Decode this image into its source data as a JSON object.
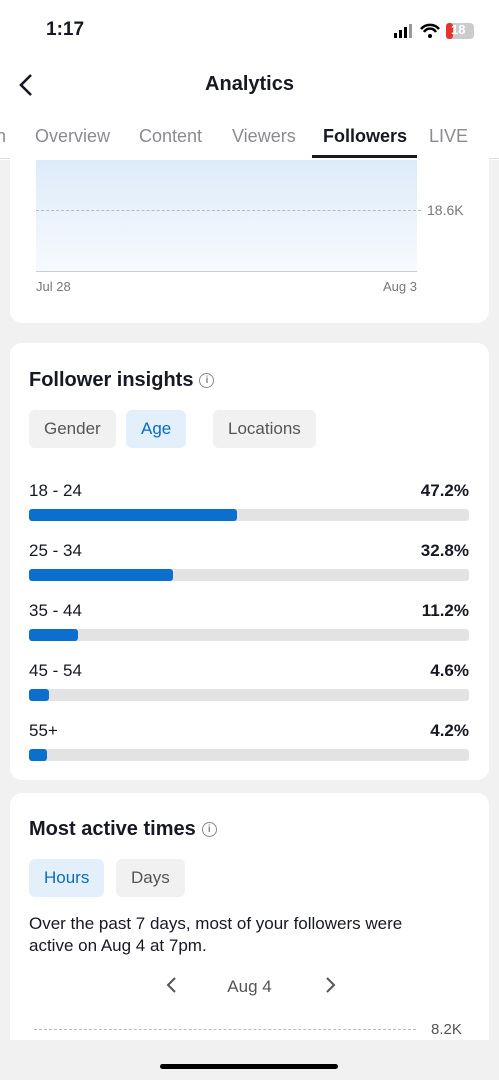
{
  "status_bar": {
    "time": "1:17",
    "battery": "18"
  },
  "header": {
    "title": "Analytics"
  },
  "tabs": [
    {
      "label": "n"
    },
    {
      "label": "Overview"
    },
    {
      "label": "Content"
    },
    {
      "label": "Viewers"
    },
    {
      "label": "Followers",
      "selected": true
    },
    {
      "label": "LIVE"
    }
  ],
  "follower_chart": {
    "y_label": "18.6K",
    "x_labels": [
      "Jul 28",
      "Aug 3"
    ]
  },
  "follower_insights": {
    "title": "Follower insights",
    "filters": [
      {
        "label": "Gender"
      },
      {
        "label": "Age",
        "selected": true
      },
      {
        "label": "Locations"
      }
    ],
    "xlim": [
      0,
      100
    ],
    "rows": [
      {
        "label": "18 - 24",
        "value": 47.2,
        "value_label": "47.2%"
      },
      {
        "label": "25 - 34",
        "value": 32.8,
        "value_label": "32.8%"
      },
      {
        "label": "35 - 44",
        "value": 11.2,
        "value_label": "11.2%"
      },
      {
        "label": "45 - 54",
        "value": 4.6,
        "value_label": "4.6%"
      },
      {
        "label": "55+",
        "value": 4.2,
        "value_label": "4.2%"
      }
    ]
  },
  "most_active": {
    "title": "Most active times",
    "filters": [
      {
        "label": "Hours",
        "selected": true
      },
      {
        "label": "Days"
      }
    ],
    "summary": "Over the past 7 days, most of your followers were active on Aug 4 at 7pm.",
    "date": "Aug 4",
    "y_label": "8.2K"
  }
}
